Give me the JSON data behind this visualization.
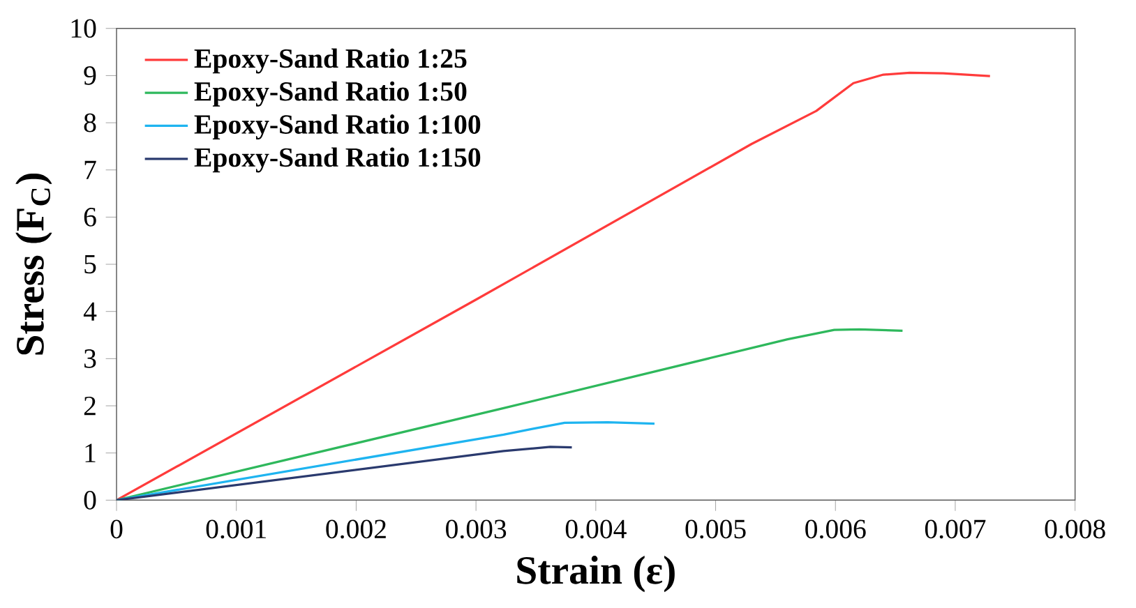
{
  "chart_data": {
    "type": "line",
    "xlabel": "Strain (ε)",
    "ylabel": "Stress (F$_{C}$)",
    "xlim": [
      0,
      0.008
    ],
    "ylim": [
      0,
      10
    ],
    "xticks": [
      0,
      0.001,
      0.002,
      0.003,
      0.004,
      0.005,
      0.006,
      0.007,
      0.008
    ],
    "yticks": [
      0,
      1,
      2,
      3,
      4,
      5,
      6,
      7,
      8,
      9,
      10
    ],
    "legend": "top left",
    "grid": false,
    "marker": "none",
    "line_style": "solid",
    "series": [
      {
        "name": "Epoxy-Sand Ratio 1:25",
        "color": "#ff3b3b",
        "x": [
          0,
          0.003,
          0.0053,
          0.00584,
          0.00615,
          0.0064,
          0.00662,
          0.0069,
          0.00729
        ],
        "values": [
          0,
          4.25,
          7.55,
          8.25,
          8.84,
          9.02,
          9.06,
          9.05,
          8.99
        ]
      },
      {
        "name": "Epoxy-Sand Ratio 1:50",
        "color": "#2eb85c",
        "x": [
          0,
          0.00323,
          0.0056,
          0.00599,
          0.0062,
          0.00656
        ],
        "values": [
          0,
          1.95,
          3.41,
          3.61,
          3.62,
          3.59
        ]
      },
      {
        "name": "Epoxy-Sand Ratio 1:100",
        "color": "#1eb4f0",
        "x": [
          0,
          0.00323,
          0.00347,
          0.00374,
          0.0041,
          0.00449
        ],
        "values": [
          0,
          1.39,
          1.51,
          1.64,
          1.65,
          1.62
        ]
      },
      {
        "name": "Epoxy-Sand Ratio 1:150",
        "color": "#2a3a6e",
        "x": [
          0,
          0.00323,
          0.00362,
          0.0038
        ],
        "values": [
          0,
          1.04,
          1.13,
          1.12
        ]
      }
    ]
  }
}
